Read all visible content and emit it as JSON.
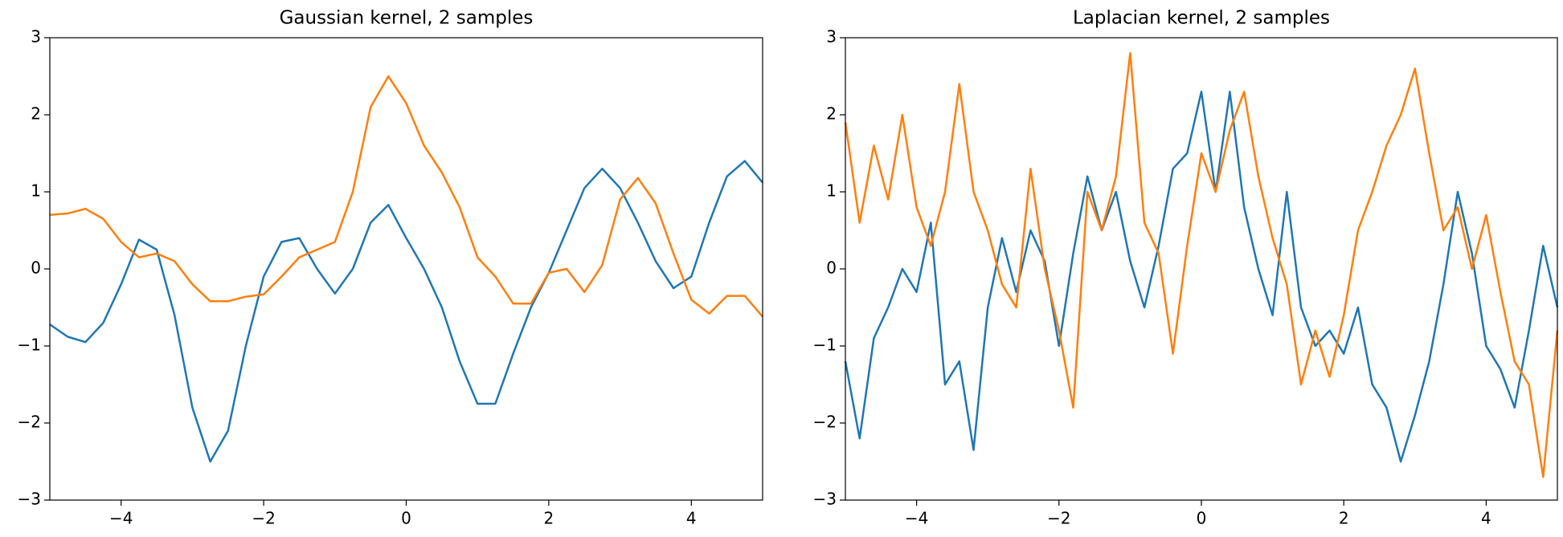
{
  "chart_data": [
    {
      "type": "line",
      "title": "Gaussian kernel, 2 samples",
      "x": [
        -5,
        -4.75,
        -4.5,
        -4.25,
        -4,
        -3.75,
        -3.5,
        -3.25,
        -3,
        -2.75,
        -2.5,
        -2.25,
        -2,
        -1.75,
        -1.5,
        -1.25,
        -1,
        -0.75,
        -0.5,
        -0.25,
        0,
        0.25,
        0.5,
        0.75,
        1,
        1.25,
        1.5,
        1.75,
        2,
        2.25,
        2.5,
        2.75,
        3,
        3.25,
        3.5,
        3.75,
        4,
        4.25,
        4.5,
        4.75,
        5
      ],
      "series": [
        {
          "color": "#1f77b4",
          "values": [
            -0.72,
            -0.88,
            -0.95,
            -0.7,
            -0.2,
            0.38,
            0.25,
            -0.6,
            -1.8,
            -2.5,
            -2.1,
            -1.0,
            -0.1,
            0.35,
            0.4,
            0.0,
            -0.32,
            0.0,
            0.6,
            0.83,
            0.4,
            0.0,
            -0.5,
            -1.2,
            -1.75,
            -1.75,
            -1.1,
            -0.5,
            -0.05,
            0.5,
            1.05,
            1.3,
            1.05,
            0.6,
            0.1,
            -0.25,
            -0.1,
            0.6,
            1.2,
            1.4,
            1.12
          ]
        },
        {
          "color": "#ff7f0e",
          "values": [
            0.7,
            0.72,
            0.78,
            0.65,
            0.35,
            0.15,
            0.2,
            0.1,
            -0.2,
            -0.42,
            -0.42,
            -0.36,
            -0.33,
            -0.1,
            0.15,
            0.25,
            0.35,
            1.0,
            2.1,
            2.5,
            2.15,
            1.6,
            1.25,
            0.8,
            0.15,
            -0.1,
            -0.45,
            -0.45,
            -0.05,
            0.0,
            -0.3,
            0.05,
            0.9,
            1.18,
            0.85,
            0.2,
            -0.4,
            -0.58,
            -0.35,
            -0.35,
            -0.62
          ]
        }
      ],
      "xlim": [
        -5,
        5
      ],
      "ylim": [
        -3,
        3
      ],
      "xticks": [
        {
          "value": -4,
          "label": "−4"
        },
        {
          "value": -2,
          "label": "−2"
        },
        0,
        2,
        4
      ],
      "yticks": [
        {
          "value": -3,
          "label": "−3"
        },
        {
          "value": -2,
          "label": "−2"
        },
        {
          "value": -1,
          "label": "−1"
        },
        0,
        1,
        2,
        3
      ]
    },
    {
      "type": "line",
      "title": "Laplacian kernel, 2 samples",
      "x": [
        -5,
        -4.8,
        -4.6,
        -4.4,
        -4.2,
        -4,
        -3.8,
        -3.6,
        -3.4,
        -3.2,
        -3,
        -2.8,
        -2.6,
        -2.4,
        -2.2,
        -2,
        -1.8,
        -1.6,
        -1.4,
        -1.2,
        -1,
        -0.8,
        -0.6,
        -0.4,
        -0.2,
        0,
        0.2,
        0.4,
        0.6,
        0.8,
        1,
        1.2,
        1.4,
        1.6,
        1.8,
        2,
        2.2,
        2.4,
        2.6,
        2.8,
        3,
        3.2,
        3.4,
        3.6,
        3.8,
        4,
        4.2,
        4.4,
        4.6,
        4.8,
        5
      ],
      "series": [
        {
          "color": "#1f77b4",
          "values": [
            -1.2,
            -2.2,
            -0.9,
            -0.5,
            0.0,
            -0.3,
            0.6,
            -1.5,
            -1.2,
            -2.35,
            -0.5,
            0.4,
            -0.3,
            0.5,
            0.1,
            -1.0,
            0.2,
            1.2,
            0.5,
            1.0,
            0.1,
            -0.5,
            0.3,
            1.3,
            1.5,
            2.3,
            1.0,
            2.3,
            0.8,
            0.0,
            -0.6,
            1.0,
            -0.5,
            -1.0,
            -0.8,
            -1.1,
            -0.5,
            -1.5,
            -1.8,
            -2.5,
            -1.9,
            -1.2,
            -0.2,
            1.0,
            0.2,
            -1.0,
            -1.3,
            -1.8,
            -0.8,
            0.3,
            -0.5
          ]
        },
        {
          "color": "#ff7f0e",
          "values": [
            1.9,
            0.6,
            1.6,
            0.9,
            2.0,
            0.8,
            0.3,
            1.0,
            2.4,
            1.0,
            0.5,
            -0.2,
            -0.5,
            1.3,
            0.0,
            -0.8,
            -1.8,
            1.0,
            0.5,
            1.2,
            2.8,
            0.6,
            0.2,
            -1.1,
            0.3,
            1.5,
            1.0,
            1.8,
            2.3,
            1.2,
            0.4,
            -0.2,
            -1.5,
            -0.8,
            -1.4,
            -0.6,
            0.5,
            1.0,
            1.6,
            2.0,
            2.6,
            1.5,
            0.5,
            0.8,
            0.0,
            0.7,
            -0.3,
            -1.2,
            -1.5,
            -2.7,
            -0.8
          ]
        }
      ],
      "xlim": [
        -5,
        5
      ],
      "ylim": [
        -3,
        3
      ],
      "xticks": [
        {
          "value": -4,
          "label": "−4"
        },
        {
          "value": -2,
          "label": "−2"
        },
        0,
        2,
        4
      ],
      "yticks": [
        {
          "value": -3,
          "label": "−3"
        },
        {
          "value": -2,
          "label": "−2"
        },
        {
          "value": -1,
          "label": "−1"
        },
        0,
        1,
        2,
        3
      ]
    }
  ]
}
